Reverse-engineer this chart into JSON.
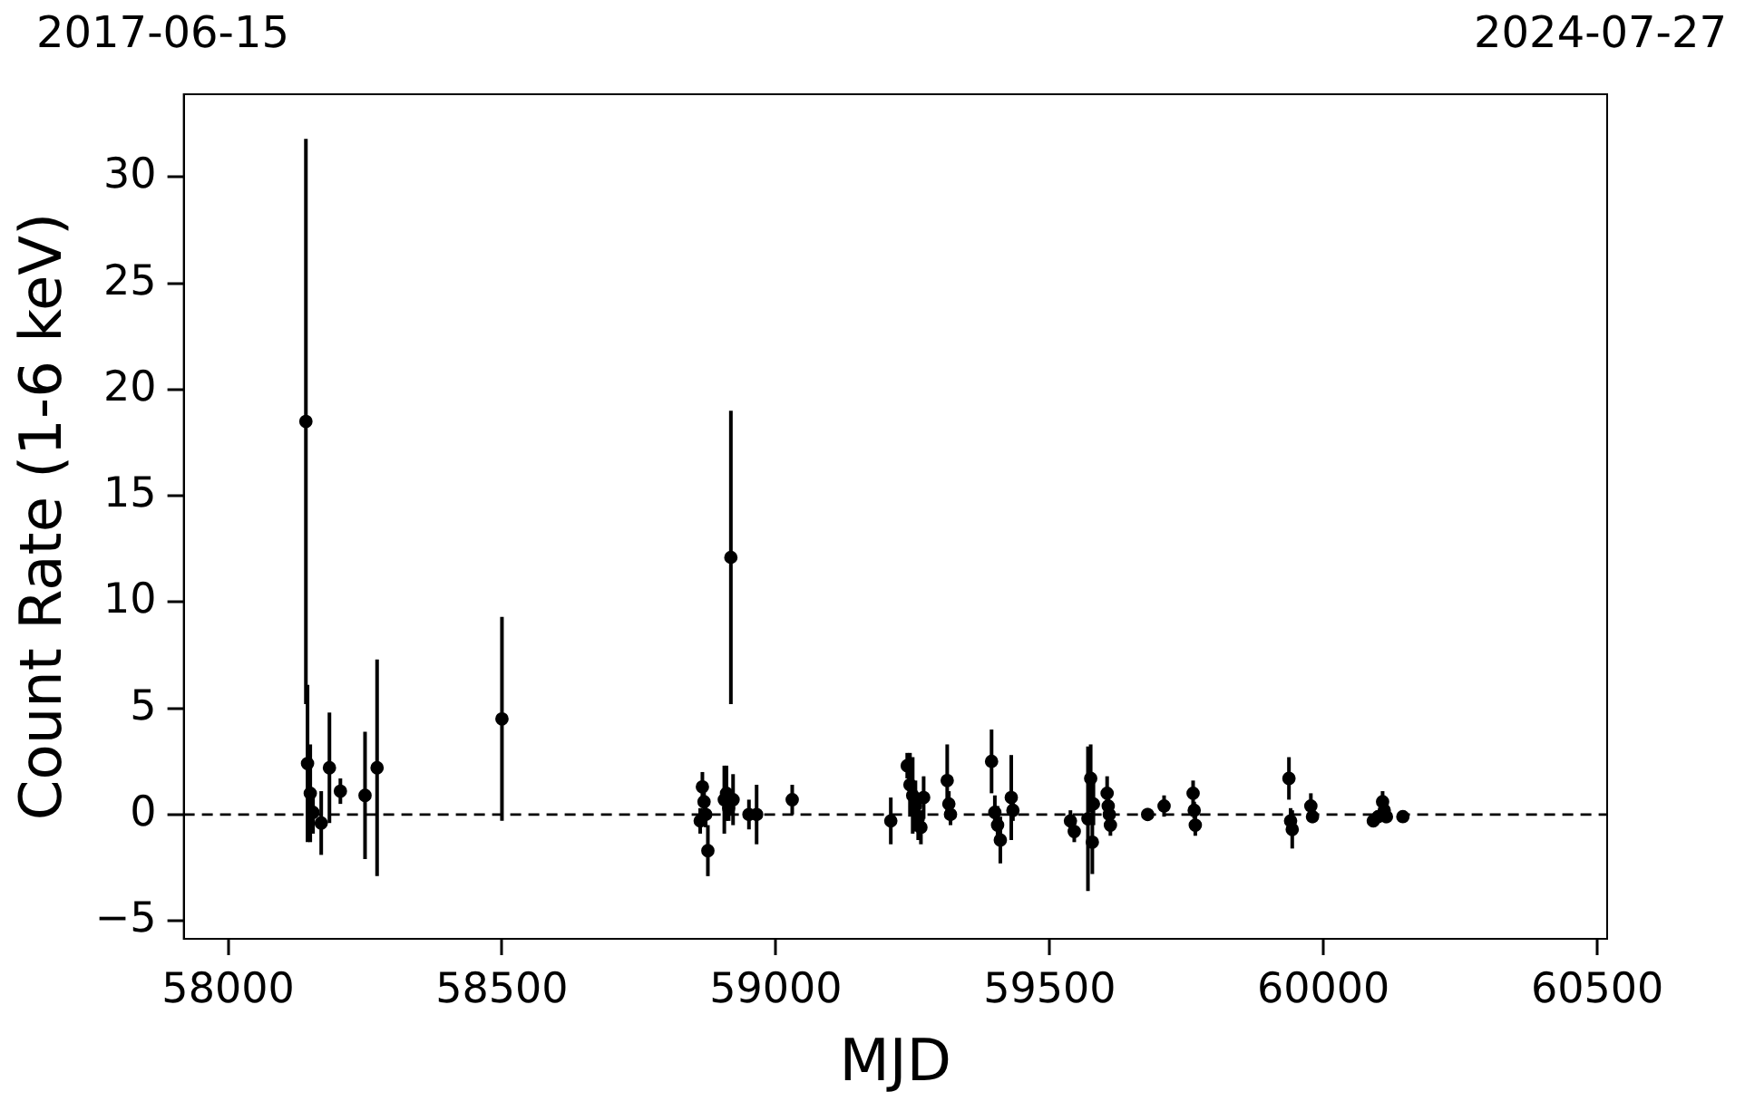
{
  "chart_data": {
    "type": "scatter",
    "xlabel": "MJD",
    "ylabel": "Count Rate (1-6 keV)",
    "xlim": [
      57919,
      60518
    ],
    "xticks": [
      58000,
      58500,
      59000,
      59500,
      60000,
      60500
    ],
    "annotations": [
      "2017-06-15",
      "2024-07-27"
    ],
    "ylim": [
      -5.85,
      33.9
    ],
    "yticks": [
      {
        "value": -5,
        "label": "−5"
      },
      0,
      5,
      10,
      15,
      20,
      25,
      30
    ],
    "grid": false,
    "legend": false,
    "marker": "circle",
    "ref_lines": [
      {
        "axis": "y",
        "value": 0,
        "color": "#000000",
        "line_style": "dashed"
      }
    ],
    "series": [
      {
        "color": "#000000",
        "x": [
          58142,
          58145,
          58150,
          58155,
          58170,
          58185,
          58205,
          58250,
          58272,
          58500,
          58862,
          58866,
          58869,
          58872,
          58876,
          58906,
          58910,
          58914,
          58918,
          58922,
          58951,
          58965,
          59030,
          59210,
          59240,
          59245,
          59250,
          59255,
          59260,
          59265,
          59270,
          59313,
          59316,
          59319,
          59394,
          59400,
          59405,
          59410,
          59430,
          59433,
          59538,
          59545,
          59570,
          59575,
          59578,
          59580,
          59605,
          59607,
          59609,
          59611,
          59679,
          59709,
          59762,
          59764,
          59766,
          59937,
          59940,
          59943,
          59977,
          59980,
          60091,
          60100,
          60108,
          60111,
          60115,
          60145
        ],
        "values": [
          18.5,
          2.4,
          1.0,
          0.1,
          -0.4,
          2.2,
          1.1,
          0.9,
          2.2,
          4.5,
          -0.3,
          1.3,
          0.6,
          0.0,
          -1.7,
          0.7,
          1.0,
          0.3,
          12.1,
          0.7,
          0.0,
          0.0,
          0.7,
          -0.3,
          2.3,
          1.4,
          0.9,
          0.4,
          -0.2,
          -0.6,
          0.8,
          1.6,
          0.5,
          0.0,
          2.5,
          0.1,
          -0.5,
          -1.2,
          0.8,
          0.2,
          -0.3,
          -0.8,
          -0.2,
          1.7,
          -1.3,
          0.5,
          1.0,
          0.4,
          0.0,
          -0.5,
          0.0,
          0.4,
          1.0,
          0.2,
          -0.5,
          1.7,
          -0.3,
          -0.7,
          0.4,
          -0.1,
          -0.3,
          -0.1,
          0.6,
          0.2,
          -0.1,
          -0.1
        ],
        "errors": [
          13.3,
          3.7,
          2.3,
          1.0,
          1.5,
          2.6,
          0.6,
          3.0,
          5.1,
          4.8,
          0.6,
          0.7,
          0.8,
          0.6,
          1.2,
          1.6,
          1.3,
          0.6,
          6.9,
          1.2,
          0.7,
          1.4,
          0.7,
          1.1,
          0.6,
          1.5,
          1.8,
          1.2,
          1.0,
          0.8,
          1.0,
          1.7,
          0.6,
          0.5,
          1.5,
          0.8,
          0.9,
          1.1,
          2.0,
          0.5,
          0.5,
          0.5,
          3.4,
          1.6,
          1.5,
          1.0,
          0.8,
          0.6,
          0.5,
          0.5,
          0.3,
          0.5,
          0.6,
          0.4,
          0.5,
          1.0,
          0.6,
          0.9,
          0.6,
          0.3,
          0.3,
          0.3,
          0.5,
          0.3,
          0.3,
          0.2
        ]
      }
    ]
  }
}
